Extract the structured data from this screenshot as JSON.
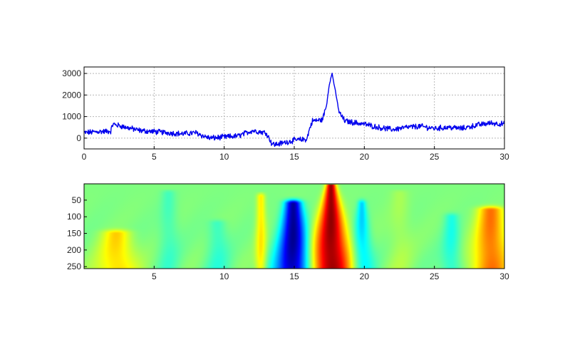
{
  "chart_data": [
    {
      "type": "line",
      "title": "",
      "xlabel": "",
      "ylabel": "",
      "xlim": [
        0,
        30
      ],
      "ylim": [
        -500,
        3300
      ],
      "grid": true,
      "legend": "none",
      "x_ticks": [
        "0",
        "5",
        "10",
        "15",
        "20",
        "25",
        "30"
      ],
      "y_ticks": [
        "0",
        "1000",
        "2000",
        "3000"
      ],
      "line_color": "#0000ee",
      "series": [
        {
          "x": [
            0,
            1,
            1.9,
            2.05,
            3,
            4,
            5,
            6,
            7,
            8,
            8.5,
            9,
            10,
            11,
            12,
            12.5,
            13,
            13.4,
            13.6,
            14,
            15,
            15.9,
            16.1,
            16.3,
            17,
            17.3,
            17.5,
            17.7,
            17.9,
            18.2,
            18.6,
            19,
            20,
            21,
            22,
            23,
            24,
            25,
            26,
            27,
            28,
            29,
            30
          ],
          "y": [
            250,
            300,
            320,
            650,
            500,
            350,
            300,
            250,
            200,
            250,
            100,
            0,
            50,
            100,
            350,
            300,
            250,
            -250,
            -300,
            -250,
            -100,
            -50,
            450,
            800,
            850,
            1500,
            2500,
            3000,
            2300,
            1200,
            800,
            750,
            650,
            500,
            400,
            500,
            550,
            450,
            500,
            450,
            600,
            700,
            650
          ]
        }
      ]
    },
    {
      "type": "heatmap",
      "title": "",
      "xlabel": "",
      "ylabel": "",
      "xlim": [
        0,
        30
      ],
      "ylim": [
        256,
        1
      ],
      "colormap": "jet",
      "x_ticks": [
        "5",
        "10",
        "15",
        "20",
        "25",
        "30"
      ],
      "y_ticks": [
        "50",
        "100",
        "150",
        "200",
        "250"
      ],
      "features": [
        {
          "x": 17.6,
          "scale_top": 5,
          "scale_bottom": 256,
          "width_top": 0.35,
          "width_bottom": 1.6,
          "value": 1.0
        },
        {
          "x": 14.9,
          "scale_top": 60,
          "scale_bottom": 256,
          "width_top": 0.6,
          "width_bottom": 1.3,
          "value": -1.0
        },
        {
          "x": 19.8,
          "scale_top": 60,
          "scale_bottom": 256,
          "width_top": 0.3,
          "width_bottom": 0.9,
          "value": -0.35
        },
        {
          "x": 2.3,
          "scale_top": 150,
          "scale_bottom": 256,
          "width_top": 1.0,
          "width_bottom": 1.5,
          "value": 0.35
        },
        {
          "x": 29.0,
          "scale_top": 80,
          "scale_bottom": 256,
          "width_top": 0.9,
          "width_bottom": 1.4,
          "value": 0.55
        },
        {
          "x": 12.6,
          "scale_top": 40,
          "scale_bottom": 160,
          "width_top": 0.3,
          "width_bottom": 0.4,
          "value": 0.3
        },
        {
          "x": 9.5,
          "scale_top": 120,
          "scale_bottom": 256,
          "width_top": 0.6,
          "width_bottom": 1.0,
          "value": -0.15
        },
        {
          "x": 26.2,
          "scale_top": 100,
          "scale_bottom": 256,
          "width_top": 0.5,
          "width_bottom": 0.8,
          "value": -0.2
        },
        {
          "x": 6.0,
          "scale_top": 30,
          "scale_bottom": 200,
          "width_top": 0.5,
          "width_bottom": 0.8,
          "value": -0.12
        },
        {
          "x": 22.5,
          "scale_top": 30,
          "scale_bottom": 256,
          "width_top": 0.6,
          "width_bottom": 1.0,
          "value": 0.08
        }
      ]
    }
  ]
}
